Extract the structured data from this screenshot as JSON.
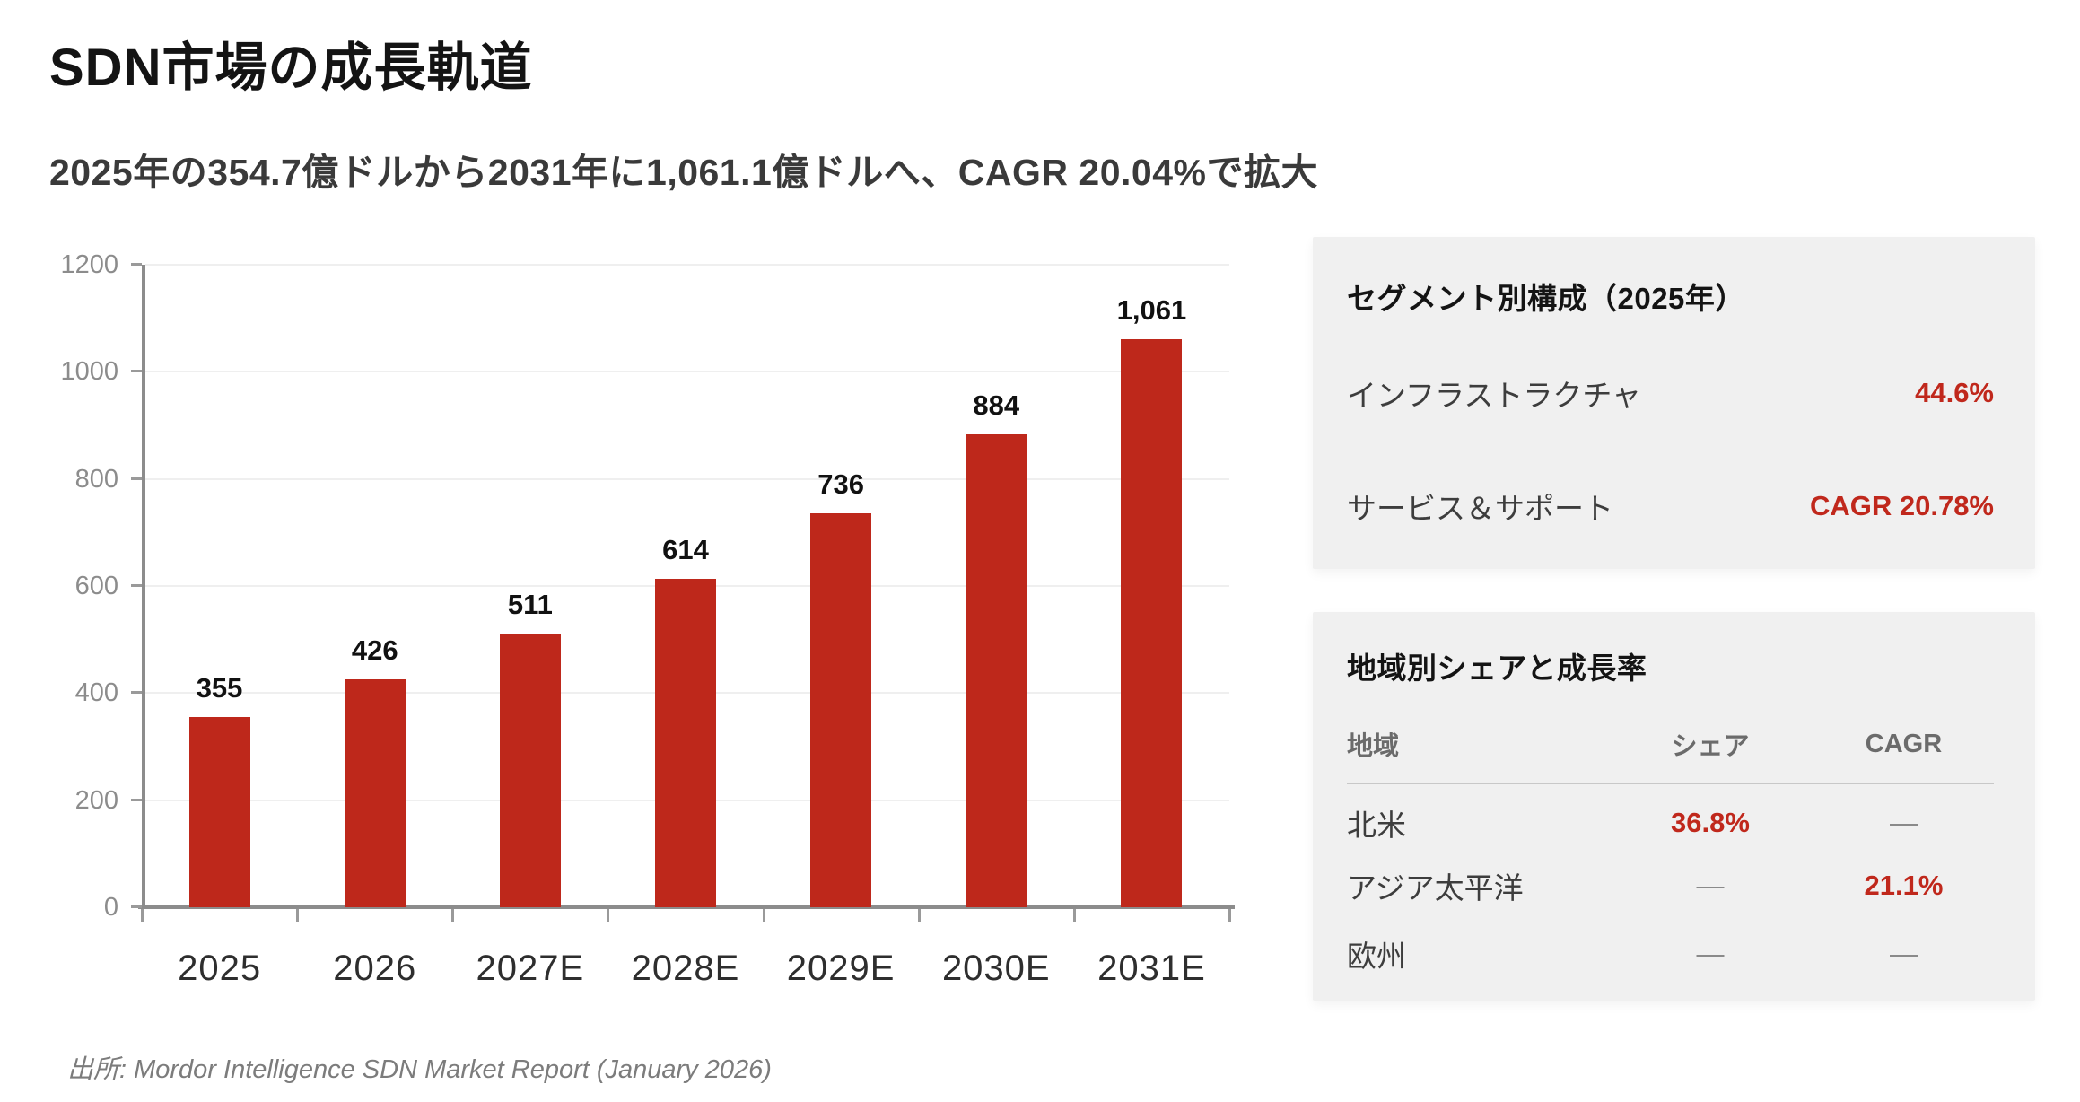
{
  "page": {
    "title": "SDN市場の成長軌道",
    "subtitle": "2025年の354.7億ドルから2031年に1,061.1億ドルへ、CAGR 20.04%で拡大",
    "source": "出所: Mordor Intelligence SDN Market Report (January 2026)"
  },
  "colors": {
    "bar": "#be281b",
    "accent_red": "#c0281c",
    "panel_bg": "#f0f0f0",
    "gridline": "#efefef",
    "axis": "#8c8c8c"
  },
  "chart_data": {
    "type": "bar",
    "title": "",
    "xlabel": "",
    "ylabel": "",
    "categories": [
      "2025",
      "2026",
      "2027E",
      "2028E",
      "2029E",
      "2030E",
      "2031E"
    ],
    "values": [
      355,
      426,
      511,
      614,
      736,
      884,
      1061
    ],
    "value_labels": [
      "355",
      "426",
      "511",
      "614",
      "736",
      "884",
      "1,061"
    ],
    "ylim": [
      0,
      1200
    ],
    "yticks": [
      0,
      200,
      400,
      600,
      800,
      1000,
      1200
    ],
    "grid": "horizontal",
    "legend": "none",
    "bar_color": "#be281b"
  },
  "segment_panel": {
    "title": "セグメント別構成（2025年）",
    "rows": [
      {
        "label": "インフラストラクチャ",
        "value": "44.6%"
      },
      {
        "label": "サービス＆サポート",
        "value": "CAGR 20.78%"
      }
    ]
  },
  "region_panel": {
    "title": "地域別シェアと成長率",
    "headers": [
      "地域",
      "シェア",
      "CAGR"
    ],
    "rows": [
      {
        "name": "北米",
        "share": "36.8%",
        "share_red": true,
        "cagr": "—",
        "cagr_red": false
      },
      {
        "name": "アジア太平洋",
        "share": "—",
        "share_red": false,
        "cagr": "21.1%",
        "cagr_red": true
      },
      {
        "name": "欧州",
        "share": "—",
        "share_red": false,
        "cagr": "—",
        "cagr_red": false
      }
    ]
  }
}
